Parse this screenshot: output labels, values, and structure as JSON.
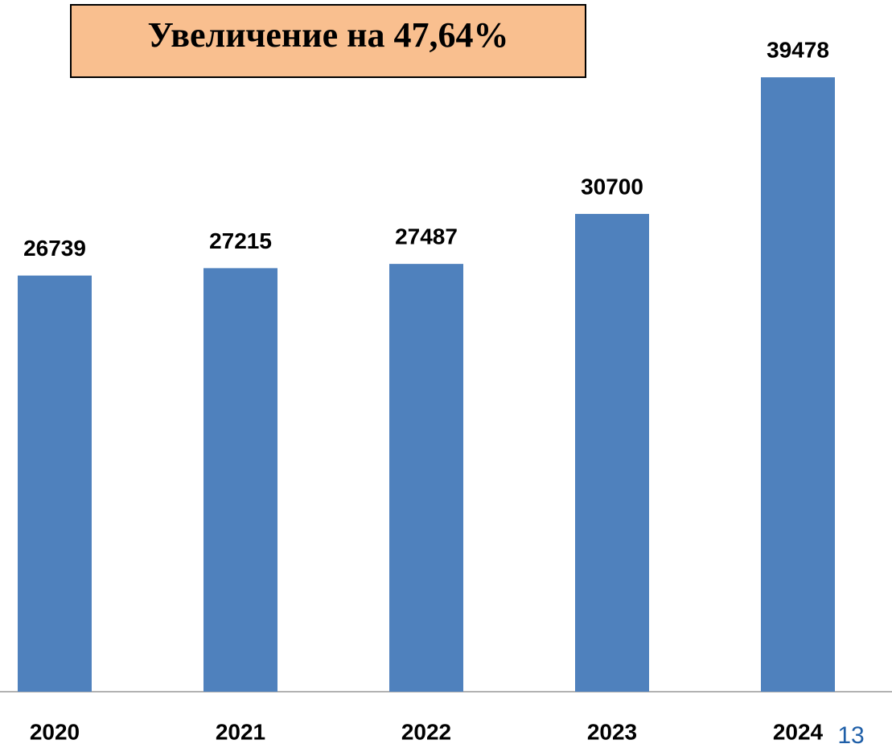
{
  "chart_data": {
    "type": "bar",
    "annotation": "Увеличение на 47,64%",
    "categories": [
      "2020",
      "2021",
      "2022",
      "2023",
      "2024"
    ],
    "values": [
      26739,
      27215,
      27487,
      30700,
      39478
    ],
    "color": "#4f81bd",
    "ylim": [
      0,
      40000
    ],
    "page_number": "13"
  }
}
